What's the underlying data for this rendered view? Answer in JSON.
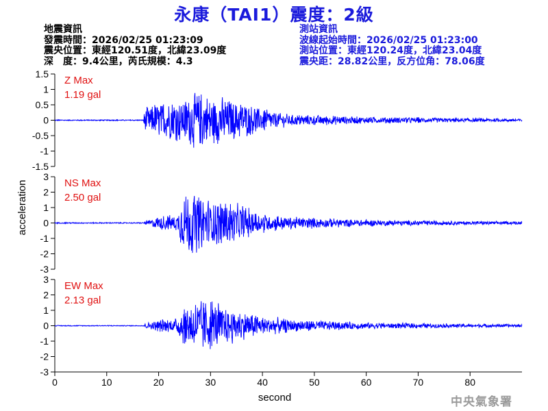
{
  "header": {
    "title": "永康（TAI1）震度：2級"
  },
  "info_left": {
    "heading": "地震資訊",
    "origin_time": "發震時間：2026/02/25 01:23:09",
    "epicenter": "震央位置：東經120.51度，北緯23.09度",
    "depth_magnitude": "深　度：9.4公里，芮氏規模：4.3"
  },
  "info_right": {
    "heading": "測站資訊",
    "start_time": "波線起始時間：2026/02/25 01:23:00",
    "station_location": "測站位置：東經120.24度，北緯23.04度",
    "distance_azimuth": "震央距：28.82公里，反方位角：78.06度"
  },
  "watermark": "中央氣象署",
  "colors": {
    "trace": "#0000ff",
    "max_label": "#e01010",
    "title": "#1a1adc",
    "station_info": "#1a1adc",
    "watermark": "#9a9a9a"
  },
  "chart_data": {
    "type": "line",
    "xlabel": "second",
    "ylabel": "acceleration",
    "xlim": [
      0,
      90
    ],
    "x_ticks": [
      0,
      10,
      20,
      30,
      40,
      50,
      60,
      70,
      80
    ],
    "panels": [
      {
        "name": "Z",
        "max_label_1": "Z Max",
        "max_label_2": "1.19 gal",
        "ylim": [
          -1.5,
          1.5
        ],
        "y_ticks": [
          1.5,
          1,
          0.5,
          0,
          -0.5,
          -1,
          -1.5
        ],
        "y_tick_labels": [
          "1.5",
          "1",
          "0.5",
          "0",
          "-0.5",
          "-1",
          "-1.5"
        ],
        "envelope": [
          [
            0,
            0.02
          ],
          [
            17,
            0.02
          ],
          [
            17.3,
            0.4
          ],
          [
            19,
            0.6
          ],
          [
            24,
            0.75
          ],
          [
            28,
            1.05
          ],
          [
            33,
            0.8
          ],
          [
            38,
            0.55
          ],
          [
            45,
            0.2
          ],
          [
            52,
            0.18
          ],
          [
            60,
            0.12
          ],
          [
            70,
            0.1
          ],
          [
            80,
            0.07
          ],
          [
            90,
            0.06
          ]
        ]
      },
      {
        "name": "NS",
        "max_label_1": "NS Max",
        "max_label_2": "2.50 gal",
        "ylim": [
          -3,
          3
        ],
        "y_ticks": [
          3,
          2,
          1,
          0,
          -1,
          -2,
          -3
        ],
        "y_tick_labels": [
          "3",
          "2",
          "1",
          "0",
          "-1",
          "-2",
          "-3"
        ],
        "envelope": [
          [
            0,
            0.04
          ],
          [
            17,
            0.04
          ],
          [
            17.5,
            0.15
          ],
          [
            20,
            0.5
          ],
          [
            23.5,
            0.6
          ],
          [
            24.3,
            1.7
          ],
          [
            26,
            2.3
          ],
          [
            30,
            1.7
          ],
          [
            33,
            1.6
          ],
          [
            36,
            1.3
          ],
          [
            40,
            0.7
          ],
          [
            46,
            0.45
          ],
          [
            55,
            0.3
          ],
          [
            65,
            0.2
          ],
          [
            75,
            0.15
          ],
          [
            90,
            0.1
          ]
        ]
      },
      {
        "name": "EW",
        "max_label_1": "EW Max",
        "max_label_2": "2.13 gal",
        "ylim": [
          -3,
          3
        ],
        "y_ticks": [
          3,
          2,
          1,
          0,
          -1,
          -2,
          -3
        ],
        "y_tick_labels": [
          "3",
          "2",
          "1",
          "0",
          "-1",
          "-2",
          "-3"
        ],
        "envelope": [
          [
            0,
            0.03
          ],
          [
            17,
            0.03
          ],
          [
            17.5,
            0.2
          ],
          [
            20,
            0.45
          ],
          [
            23.5,
            0.5
          ],
          [
            24.5,
            1.4
          ],
          [
            27,
            1.8
          ],
          [
            29.5,
            2.0
          ],
          [
            33,
            1.3
          ],
          [
            36,
            1.1
          ],
          [
            40,
            0.7
          ],
          [
            46,
            0.45
          ],
          [
            55,
            0.3
          ],
          [
            65,
            0.2
          ],
          [
            75,
            0.15
          ],
          [
            90,
            0.1
          ]
        ]
      }
    ]
  }
}
